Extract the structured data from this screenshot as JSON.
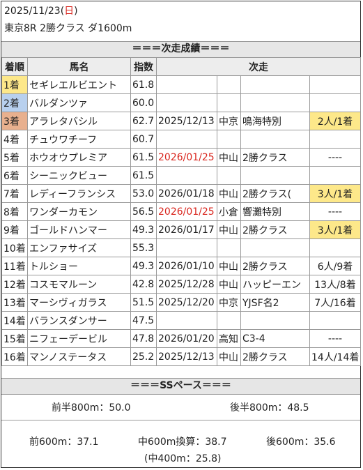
{
  "header": {
    "date": "2025/11/23",
    "day_open": "(",
    "day": "日",
    "day_close": ")",
    "race": "東京8R 2勝クラス ダ1600m"
  },
  "results_title": "＝＝＝次走成績＝＝＝",
  "columns": {
    "rank": "着順",
    "horse": "馬名",
    "index": "指数",
    "next": "次走"
  },
  "rows": [
    {
      "rank": "1着",
      "horse": "セギレエルビエント",
      "index": "61.8",
      "date": "",
      "track": "",
      "race": "",
      "result": ""
    },
    {
      "rank": "2着",
      "horse": "バルダンツァ",
      "index": "60.0",
      "date": "",
      "track": "",
      "race": "",
      "result": ""
    },
    {
      "rank": "3着",
      "horse": "アラレタバシル",
      "index": "62.7",
      "date": "2025/12/13",
      "track": "中京",
      "race": "鳴海特別",
      "result": "2人/1着"
    },
    {
      "rank": "4着",
      "horse": "チュウワチーフ",
      "index": "60.7",
      "date": "",
      "track": "",
      "race": "",
      "result": ""
    },
    {
      "rank": "5着",
      "horse": "ホウオウプレミア",
      "index": "61.5",
      "date": "2026/01/25",
      "track": "中山",
      "race": "2勝クラス",
      "result": "----"
    },
    {
      "rank": "6着",
      "horse": "シーニックビュー",
      "index": "61.5",
      "date": "",
      "track": "",
      "race": "",
      "result": ""
    },
    {
      "rank": "7着",
      "horse": "レディーフランシス",
      "index": "53.0",
      "date": "2026/01/18",
      "track": "中山",
      "race": "2勝クラス(",
      "result": "3人/1着"
    },
    {
      "rank": "8着",
      "horse": "ワンダーカモン",
      "index": "56.5",
      "date": "2026/01/25",
      "track": "小倉",
      "race": "響灘特別",
      "result": "----"
    },
    {
      "rank": "9着",
      "horse": "ゴールドハンマー",
      "index": "49.3",
      "date": "2026/01/17",
      "track": "中山",
      "race": "2勝クラス",
      "result": "3人/1着"
    },
    {
      "rank": "10着",
      "horse": "エンファサイズ",
      "index": "55.3",
      "date": "",
      "track": "",
      "race": "",
      "result": ""
    },
    {
      "rank": "11着",
      "horse": "トルショー",
      "index": "49.3",
      "date": "2026/01/10",
      "track": "中山",
      "race": "2勝クラス",
      "result": "6人/9着"
    },
    {
      "rank": "12着",
      "horse": "コスモマルーン",
      "index": "42.8",
      "date": "2025/12/28",
      "track": "中山",
      "race": "ハッピーエン",
      "result": "13人/8着"
    },
    {
      "rank": "13着",
      "horse": "マーシヴィガラス",
      "index": "51.5",
      "date": "2025/12/20",
      "track": "中京",
      "race": "YJSF名2",
      "result": "7人/16着"
    },
    {
      "rank": "14着",
      "horse": "バランスダンサー",
      "index": "47.5",
      "date": "",
      "track": "",
      "race": "",
      "result": ""
    },
    {
      "rank": "15着",
      "horse": "ニフェーデービル",
      "index": "47.8",
      "date": "2026/01/20",
      "track": "高知",
      "race": "C3-4",
      "result": "----"
    },
    {
      "rank": "16着",
      "horse": "マンノステータス",
      "index": "25.2",
      "date": "2025/12/13",
      "track": "中山",
      "race": "2勝クラス",
      "result": "14人/14着"
    }
  ],
  "pace": {
    "title": "＝＝＝SSペース＝＝＝",
    "first_half": "前半800m：50.0",
    "second_half": "後半800m：48.5",
    "first600": "前600m：37.1",
    "mid600": "中600m換算：38.7",
    "last600": "後600m：35.6",
    "mid400": "(中400m：25.8)"
  },
  "colors": {
    "gold": "#fde88a",
    "silver": "#b8d0ee",
    "bronze": "#e8b08e",
    "red_date": "#d9251d",
    "header_bg": "#ededed"
  }
}
